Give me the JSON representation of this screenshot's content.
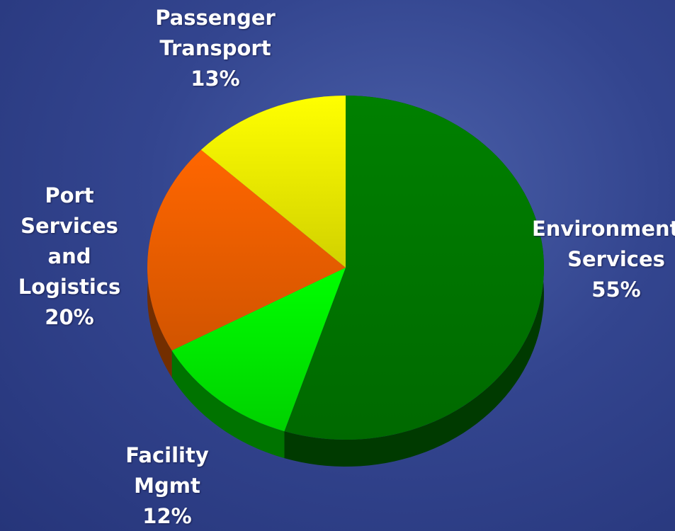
{
  "chart_data": {
    "type": "pie",
    "categories": [
      "Environmental Services",
      "Facility Mgmt",
      "Port Services and Logistics",
      "Passenger Transport"
    ],
    "values": [
      55,
      12,
      20,
      13
    ],
    "value_labels": [
      "55%",
      "12%",
      "20%",
      "13%"
    ],
    "colors": [
      "#008000",
      "#00ff00",
      "#ff6600",
      "#ffff00"
    ]
  }
}
